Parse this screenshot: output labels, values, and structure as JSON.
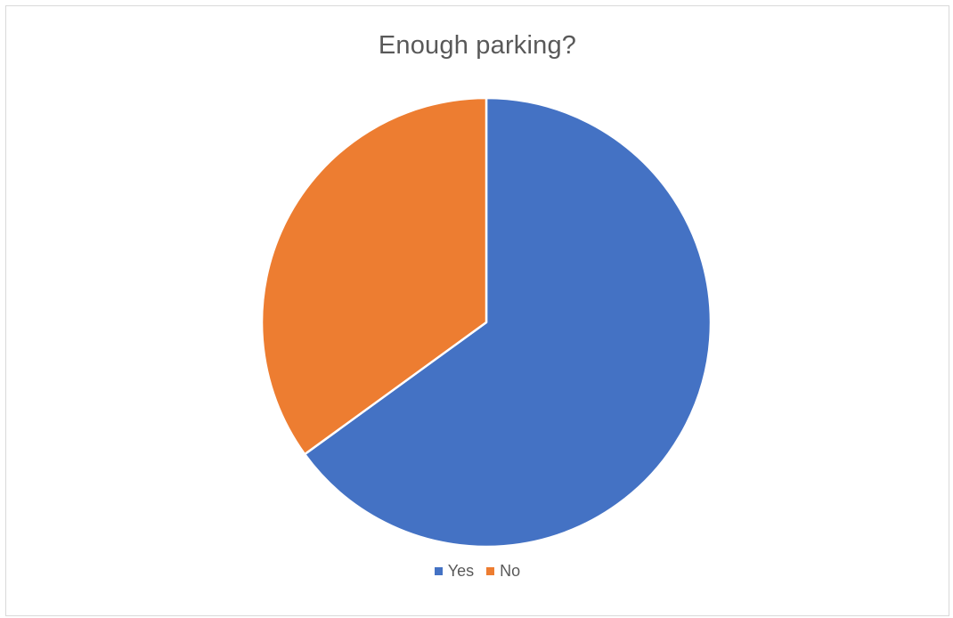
{
  "chart_data": {
    "type": "pie",
    "title": "Enough parking?",
    "categories": [
      "Yes",
      "No"
    ],
    "values": [
      65,
      35
    ],
    "colors": [
      "#4472c4",
      "#ed7d31"
    ],
    "start_angle_deg": 0,
    "direction": "clockwise",
    "legend_position": "bottom"
  }
}
